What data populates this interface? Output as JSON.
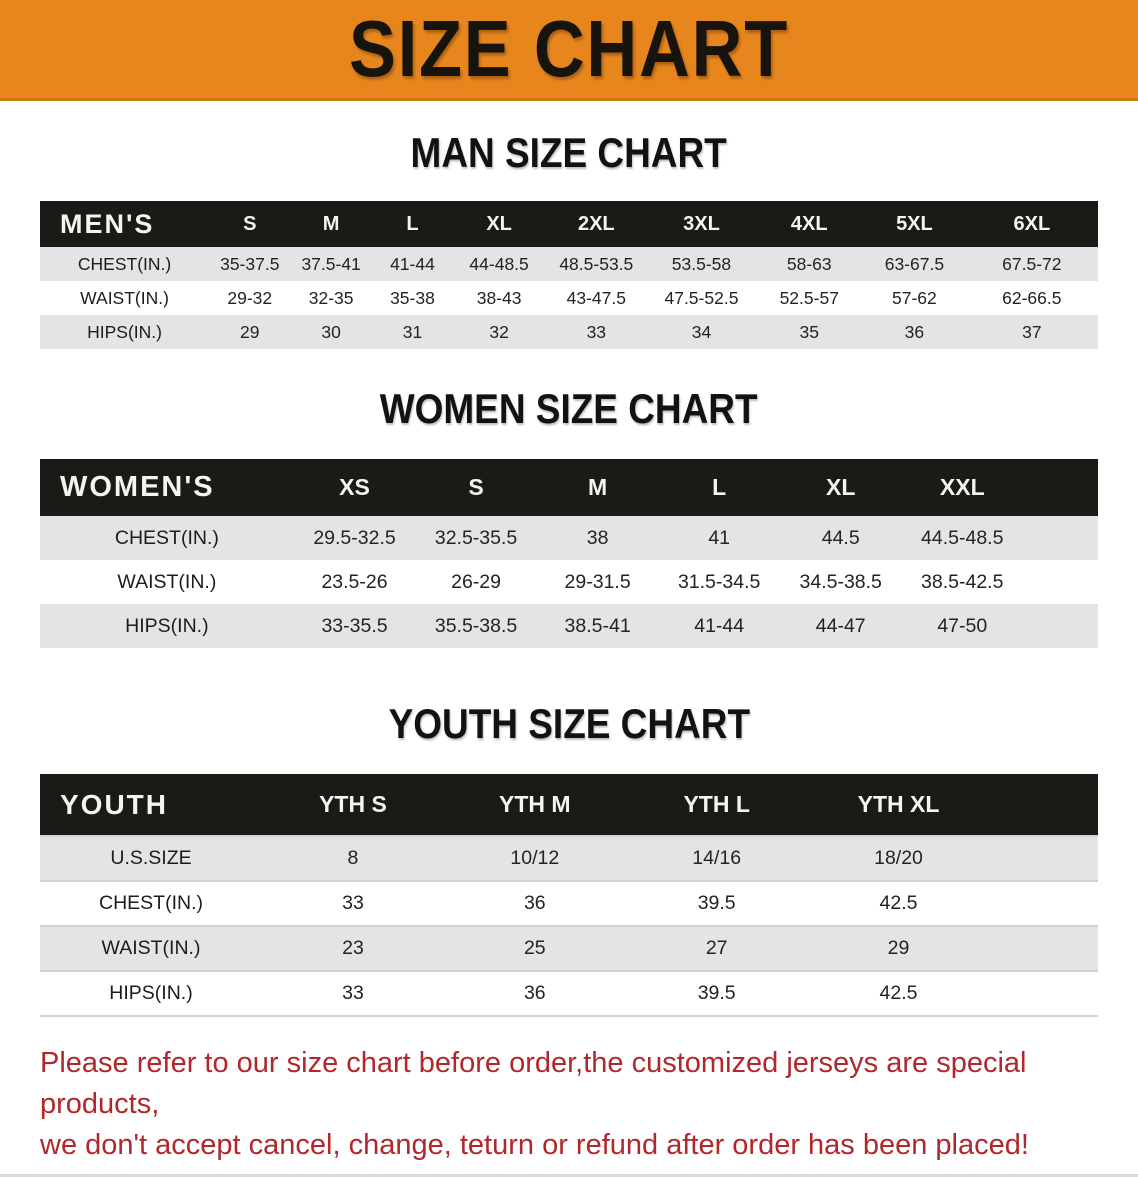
{
  "banner": {
    "title": "SIZE CHART"
  },
  "colors": {
    "banner_bg": "#e8861e",
    "band_bg": "#1b1a17",
    "row_gray": "#e3e4e5",
    "disclaimer_red": "#b1272b"
  },
  "sections": [
    {
      "heading": "MAN SIZE CHART",
      "table": {
        "header_label": "MEN'S",
        "columns": [
          "S",
          "M",
          "L",
          "XL",
          "2XL",
          "3XL",
          "4XL",
          "5XL",
          "6XL"
        ],
        "rows": [
          {
            "label": "CHEST(IN.)",
            "values": [
              "35-37.5",
              "37.5-41",
              "41-44",
              "44-48.5",
              "48.5-53.5",
              "53.5-58",
              "58-63",
              "63-67.5",
              "67.5-72"
            ]
          },
          {
            "label": "WAIST(IN.)",
            "values": [
              "29-32",
              "32-35",
              "35-38",
              "38-43",
              "43-47.5",
              "47.5-52.5",
              "52.5-57",
              "57-62",
              "62-66.5"
            ]
          },
          {
            "label": "HIPS(IN.)",
            "values": [
              "29",
              "30",
              "31",
              "32",
              "33",
              "34",
              "35",
              "36",
              "37"
            ]
          }
        ]
      }
    },
    {
      "heading": "WOMEN SIZE CHART",
      "table": {
        "header_label": "WOMEN'S",
        "columns": [
          "XS",
          "S",
          "M",
          "L",
          "XL",
          "XXL"
        ],
        "rows": [
          {
            "label": "CHEST(IN.)",
            "values": [
              "29.5-32.5",
              "32.5-35.5",
              "38",
              "41",
              "44.5",
              "44.5-48.5"
            ]
          },
          {
            "label": "WAIST(IN.)",
            "values": [
              "23.5-26",
              "26-29",
              "29-31.5",
              "31.5-34.5",
              "34.5-38.5",
              "38.5-42.5"
            ]
          },
          {
            "label": "HIPS(IN.)",
            "values": [
              "33-35.5",
              "35.5-38.5",
              "38.5-41",
              "41-44",
              "44-47",
              "47-50"
            ]
          }
        ]
      }
    },
    {
      "heading": "YOUTH SIZE CHART",
      "table": {
        "header_label": "YOUTH",
        "columns": [
          "YTH S",
          "YTH M",
          "YTH L",
          "YTH XL"
        ],
        "rows": [
          {
            "label": "U.S.SIZE",
            "values": [
              "8",
              "10/12",
              "14/16",
              "18/20"
            ]
          },
          {
            "label": "CHEST(IN.)",
            "values": [
              "33",
              "36",
              "39.5",
              "42.5"
            ]
          },
          {
            "label": "WAIST(IN.)",
            "values": [
              "23",
              "25",
              "27",
              "29"
            ]
          },
          {
            "label": "HIPS(IN.)",
            "values": [
              "33",
              "36",
              "39.5",
              "42.5"
            ]
          }
        ]
      }
    }
  ],
  "disclaimer": {
    "line1": "Please refer to our size chart before order,the customized jerseys are special products,",
    "line2": "we don't accept cancel, change, teturn or refund after order has been placed!"
  }
}
